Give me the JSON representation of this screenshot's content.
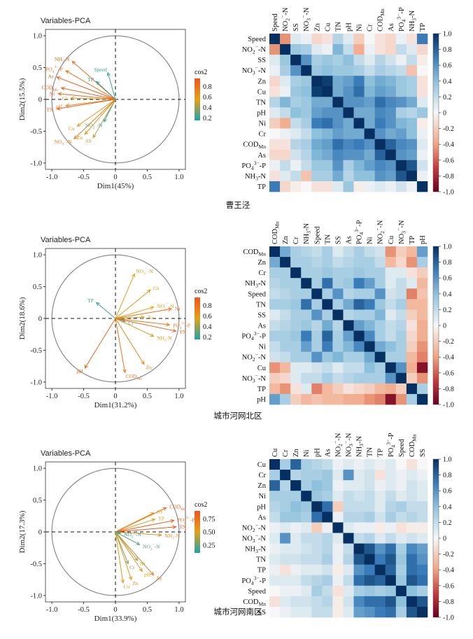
{
  "chart_data": [
    {
      "type": "scatter",
      "title": "Variables-PCA",
      "caption": "曹王泾",
      "xlabel": "Dim1(45%)",
      "ylabel": "Dim2(15.5%)",
      "xlim": [
        -1.1,
        1.1
      ],
      "ylim": [
        -1.1,
        1.1
      ],
      "ticks": [
        "-1.0",
        "-0.5",
        "0",
        "0.5",
        "1.0"
      ],
      "legend": {
        "title": "cos2",
        "ticks": [
          "0.8",
          "0.6",
          "0.4",
          "0.2"
        ],
        "range": [
          0.15,
          0.95
        ]
      },
      "vectors": [
        {
          "name": "NH3-N",
          "x": -0.68,
          "y": 0.6,
          "cos2": 0.82
        },
        {
          "name": "Speed",
          "x": -0.12,
          "y": 0.42,
          "cos2": 0.2
        },
        {
          "name": "PO4-P",
          "x": -0.78,
          "y": 0.45,
          "cos2": 0.8
        },
        {
          "name": "As",
          "x": -0.92,
          "y": 0.35,
          "cos2": 0.9
        },
        {
          "name": "TP",
          "x": -0.3,
          "y": 0.28,
          "cos2": 0.18
        },
        {
          "name": "CODMn",
          "x": -0.85,
          "y": 0.18,
          "cos2": 0.88
        },
        {
          "name": "Ni",
          "x": -0.9,
          "y": 0.09,
          "cos2": 0.85
        },
        {
          "name": "Cr",
          "x": -0.7,
          "y": 0.02,
          "cos2": 0.5
        },
        {
          "name": "pH",
          "x": -0.78,
          "y": -0.1,
          "cos2": 0.7
        },
        {
          "name": "TN",
          "x": -0.92,
          "y": -0.15,
          "cos2": 0.88
        },
        {
          "name": "NO2-N",
          "x": -0.18,
          "y": -0.35,
          "cos2": 0.2
        },
        {
          "name": "Cu",
          "x": -0.6,
          "y": -0.42,
          "cos2": 0.6
        },
        {
          "name": "Zn",
          "x": -0.48,
          "y": -0.55,
          "cos2": 0.62
        },
        {
          "name": "NO3-N",
          "x": -0.65,
          "y": -0.62,
          "cos2": 0.75
        },
        {
          "name": "SS",
          "x": -0.35,
          "y": -0.6,
          "cos2": 0.45
        }
      ]
    },
    {
      "type": "heatmap",
      "caption": "曹王泾",
      "variables": [
        "Speed",
        "NO2-N",
        "SS",
        "NO3-N",
        "Zn",
        "Cu",
        "TN",
        "pH",
        "Ni",
        "Cr",
        "CODMn",
        "As",
        "PO4-P",
        "NH3-N",
        "TP"
      ],
      "colorbar": {
        "min": -1.0,
        "max": 1.0,
        "ticks": [
          "1.0",
          "0.8",
          "0.6",
          "0.4",
          "0.2",
          "0",
          "-0.2",
          "-0.4",
          "-0.6",
          "-0.8",
          "-1.0"
        ]
      },
      "matrix": [
        [
          1.0,
          -0.45,
          0.1,
          0.05,
          -0.15,
          -0.1,
          0.25,
          0.1,
          -0.2,
          0.0,
          -0.1,
          -0.15,
          0.05,
          -0.1,
          0.7
        ],
        [
          -0.45,
          1.0,
          0.35,
          0.3,
          0.1,
          0.05,
          0.45,
          0.2,
          -0.35,
          0.05,
          -0.1,
          -0.15,
          0.2,
          0.1,
          -0.15
        ],
        [
          0.1,
          0.35,
          1.0,
          0.6,
          0.3,
          0.35,
          0.3,
          0.4,
          0.2,
          0.1,
          0.25,
          0.15,
          0.05,
          0.2,
          -0.05
        ],
        [
          0.05,
          0.3,
          0.6,
          1.0,
          0.35,
          0.4,
          0.35,
          0.35,
          0.3,
          0.2,
          0.3,
          0.25,
          0.2,
          -0.25,
          0.0
        ],
        [
          -0.15,
          0.1,
          0.3,
          0.35,
          1.0,
          0.95,
          0.5,
          0.55,
          0.7,
          0.4,
          0.5,
          0.45,
          0.35,
          0.3,
          -0.1
        ],
        [
          -0.1,
          0.05,
          0.35,
          0.4,
          0.95,
          1.0,
          0.5,
          0.6,
          0.75,
          0.45,
          0.55,
          0.5,
          0.35,
          0.3,
          -0.1
        ],
        [
          0.25,
          0.45,
          0.3,
          0.35,
          0.5,
          0.5,
          1.0,
          0.6,
          0.6,
          0.55,
          0.75,
          0.65,
          0.6,
          0.5,
          0.1
        ],
        [
          0.1,
          0.2,
          0.4,
          0.35,
          0.55,
          0.6,
          0.6,
          1.0,
          0.5,
          0.5,
          0.65,
          0.6,
          0.3,
          0.25,
          0.35
        ],
        [
          -0.2,
          -0.35,
          0.2,
          0.3,
          0.7,
          0.75,
          0.6,
          0.5,
          1.0,
          0.5,
          0.7,
          0.6,
          0.45,
          0.4,
          -0.05
        ],
        [
          0.0,
          0.05,
          0.1,
          0.2,
          0.4,
          0.45,
          0.55,
          0.5,
          0.5,
          1.0,
          0.6,
          0.5,
          0.55,
          0.4,
          0.05
        ],
        [
          -0.1,
          -0.1,
          0.25,
          0.3,
          0.5,
          0.55,
          0.75,
          0.65,
          0.7,
          0.6,
          1.0,
          0.8,
          0.65,
          0.6,
          0.1
        ],
        [
          -0.15,
          -0.15,
          0.15,
          0.25,
          0.45,
          0.5,
          0.65,
          0.6,
          0.6,
          0.5,
          0.8,
          1.0,
          0.6,
          0.55,
          0.05
        ],
        [
          0.05,
          0.2,
          0.05,
          0.2,
          0.35,
          0.35,
          0.6,
          0.3,
          0.45,
          0.55,
          0.65,
          0.6,
          1.0,
          0.85,
          0.15
        ],
        [
          -0.1,
          0.1,
          0.2,
          -0.25,
          0.3,
          0.3,
          0.5,
          0.25,
          0.4,
          0.4,
          0.6,
          0.55,
          0.85,
          1.0,
          0.05
        ],
        [
          0.7,
          -0.15,
          -0.05,
          0.0,
          -0.1,
          -0.1,
          0.1,
          0.35,
          -0.05,
          0.05,
          0.1,
          0.05,
          0.15,
          0.05,
          1.0
        ]
      ]
    },
    {
      "type": "scatter",
      "title": "Variables-PCA",
      "caption": "城市河网北区",
      "xlabel": "Dim1(31.2%)",
      "ylabel": "Dim2(18.6%)",
      "xlim": [
        -1.1,
        1.1
      ],
      "ylim": [
        -1.1,
        1.1
      ],
      "ticks": [
        "-1.0",
        "-0.5",
        "0",
        "0.5",
        "1.0"
      ],
      "legend": {
        "title": "cos2",
        "ticks": [
          "0.8",
          "0.6",
          "0.4",
          "0.2"
        ],
        "range": [
          0.15,
          0.95
        ]
      },
      "vectors": [
        {
          "name": "NO3-N",
          "x": 0.3,
          "y": 0.7,
          "cos2": 0.55
        },
        {
          "name": "Cu",
          "x": 0.55,
          "y": 0.45,
          "cos2": 0.6
        },
        {
          "name": "TP",
          "x": -0.3,
          "y": 0.25,
          "cos2": 0.2
        },
        {
          "name": "NO2-N",
          "x": 0.6,
          "y": 0.18,
          "cos2": 0.55
        },
        {
          "name": "Ni",
          "x": 0.88,
          "y": 0.15,
          "cos2": 0.8
        },
        {
          "name": "As",
          "x": 0.45,
          "y": 0.02,
          "cos2": 0.5
        },
        {
          "name": "PO4-P",
          "x": 0.85,
          "y": -0.1,
          "cos2": 0.75
        },
        {
          "name": "TN",
          "x": 0.95,
          "y": -0.2,
          "cos2": 0.88
        },
        {
          "name": "Cr",
          "x": 0.15,
          "y": -0.05,
          "cos2": 0.25
        },
        {
          "name": "NH3-N",
          "x": 0.6,
          "y": -0.28,
          "cos2": 0.6
        },
        {
          "name": "Zn",
          "x": 0.45,
          "y": -0.72,
          "cos2": 0.7
        },
        {
          "name": "pH",
          "x": -0.48,
          "y": -0.78,
          "cos2": 0.85
        },
        {
          "name": "CODMn",
          "x": 0.15,
          "y": -0.85,
          "cos2": 0.78
        }
      ]
    },
    {
      "type": "heatmap",
      "caption": "城市河网北区",
      "variables": [
        "CODMn",
        "Zn",
        "Cr",
        "NH3-N",
        "Speed",
        "TN",
        "SS",
        "As",
        "PO4-P",
        "Ni",
        "NO2-N",
        "Cu",
        "NO3-N",
        "TP",
        "pH"
      ],
      "colorbar": {
        "min": -1.0,
        "max": 1.0,
        "ticks": [
          "1.0",
          "0.8",
          "0.6",
          "0.4",
          "0.2",
          "0",
          "-0.2",
          "-0.4",
          "-0.6",
          "-0.8",
          "-1.0"
        ]
      },
      "matrix": [
        [
          1.0,
          0.5,
          0.3,
          0.25,
          0.2,
          0.3,
          0.1,
          0.2,
          0.3,
          0.2,
          0.15,
          -0.45,
          -0.2,
          -0.3,
          0.55
        ],
        [
          0.5,
          1.0,
          0.3,
          0.3,
          0.25,
          0.3,
          0.2,
          0.25,
          0.3,
          0.3,
          0.2,
          -0.3,
          -0.15,
          -0.45,
          0.3
        ],
        [
          0.3,
          0.3,
          1.0,
          0.3,
          0.3,
          0.35,
          0.3,
          0.3,
          0.35,
          0.3,
          0.3,
          0.1,
          0.1,
          -0.1,
          -0.2
        ],
        [
          0.25,
          0.3,
          0.3,
          1.0,
          0.3,
          0.75,
          0.3,
          0.35,
          0.7,
          0.55,
          0.3,
          0.1,
          0.2,
          0.1,
          -0.3
        ],
        [
          0.2,
          0.25,
          0.3,
          0.3,
          1.0,
          0.3,
          0.6,
          0.25,
          0.3,
          0.3,
          0.6,
          0.15,
          0.2,
          -0.5,
          -0.25
        ],
        [
          0.3,
          0.3,
          0.35,
          0.75,
          0.3,
          1.0,
          0.3,
          0.5,
          0.8,
          0.7,
          0.35,
          0.2,
          0.3,
          -0.3,
          -0.3
        ],
        [
          0.1,
          0.2,
          0.3,
          0.3,
          0.6,
          0.3,
          1.0,
          0.25,
          0.3,
          0.3,
          0.45,
          0.1,
          0.2,
          -0.2,
          -0.3
        ],
        [
          0.2,
          0.25,
          0.3,
          0.35,
          0.25,
          0.5,
          0.25,
          1.0,
          0.55,
          0.45,
          0.3,
          0.2,
          0.25,
          -0.1,
          -0.35
        ],
        [
          0.3,
          0.3,
          0.35,
          0.7,
          0.3,
          0.8,
          0.3,
          0.55,
          1.0,
          0.65,
          0.3,
          0.2,
          0.3,
          -0.15,
          -0.35
        ],
        [
          0.2,
          0.3,
          0.3,
          0.55,
          0.3,
          0.7,
          0.3,
          0.45,
          0.65,
          1.0,
          0.5,
          0.4,
          0.3,
          -0.2,
          -0.45
        ],
        [
          0.15,
          0.2,
          0.3,
          0.3,
          0.6,
          0.35,
          0.45,
          0.3,
          0.3,
          0.5,
          1.0,
          0.3,
          0.3,
          -0.3,
          -0.5
        ],
        [
          -0.45,
          -0.3,
          0.1,
          0.1,
          0.15,
          0.2,
          0.1,
          0.2,
          0.2,
          0.4,
          0.3,
          1.0,
          0.6,
          -0.35,
          -0.9
        ],
        [
          -0.2,
          -0.15,
          0.1,
          0.2,
          0.2,
          0.3,
          0.2,
          0.25,
          0.3,
          0.3,
          0.3,
          0.6,
          1.0,
          -0.2,
          -0.45
        ],
        [
          -0.3,
          -0.45,
          -0.1,
          0.1,
          -0.5,
          -0.3,
          -0.2,
          -0.1,
          -0.15,
          -0.2,
          -0.3,
          -0.35,
          -0.2,
          1.0,
          0.3
        ],
        [
          0.55,
          0.3,
          -0.2,
          -0.3,
          -0.25,
          -0.3,
          -0.3,
          -0.35,
          -0.35,
          -0.45,
          -0.5,
          -0.9,
          -0.45,
          0.3,
          1.0
        ]
      ]
    },
    {
      "type": "scatter",
      "title": "Variables-PCA",
      "caption": "城市河网南区",
      "xlabel": "Dim1(33.9%)",
      "ylabel": "Dim2(17.3%)",
      "xlim": [
        -1.1,
        1.1
      ],
      "ylim": [
        -1.1,
        1.1
      ],
      "ticks": [
        "-1.0",
        "-0.5",
        "0",
        "0.5",
        "1.0"
      ],
      "legend": {
        "title": "cos2",
        "ticks": [
          "0.75",
          "0.50",
          "0.25"
        ],
        "range": [
          0.1,
          0.9
        ]
      },
      "vectors": [
        {
          "name": "SS",
          "x": 0.6,
          "y": 0.3,
          "cos2": 0.5
        },
        {
          "name": "CODMn",
          "x": 0.8,
          "y": 0.38,
          "cos2": 0.8
        },
        {
          "name": "TP",
          "x": 0.62,
          "y": 0.2,
          "cos2": 0.55
        },
        {
          "name": "PO4-P",
          "x": 0.92,
          "y": 0.18,
          "cos2": 0.85
        },
        {
          "name": "TN",
          "x": 0.95,
          "y": 0.08,
          "cos2": 0.88
        },
        {
          "name": "NH3-N",
          "x": 0.72,
          "y": -0.05,
          "cos2": 0.6
        },
        {
          "name": "NO2-N",
          "x": 0.08,
          "y": -0.02,
          "cos2": 0.1
        },
        {
          "name": "NO3-N",
          "x": 0.38,
          "y": -0.2,
          "cos2": 0.2
        },
        {
          "name": "Cu",
          "x": 0.12,
          "y": -0.8,
          "cos2": 0.55
        },
        {
          "name": "Zn",
          "x": 0.25,
          "y": -0.75,
          "cos2": 0.55
        },
        {
          "name": "pH",
          "x": 0.42,
          "y": -0.62,
          "cos2": 0.55
        },
        {
          "name": "As",
          "x": 0.6,
          "y": -0.68,
          "cos2": 0.7
        },
        {
          "name": "Cr",
          "x": 0.2,
          "y": -0.5,
          "cos2": 0.3
        },
        {
          "name": "Ni",
          "x": 0.35,
          "y": -0.45,
          "cos2": 0.35
        }
      ]
    },
    {
      "type": "heatmap",
      "caption": "城市河网南区",
      "variables": [
        "Cu",
        "Cr",
        "Zn",
        "Ni",
        "pH",
        "As",
        "NO2-N",
        "NO3-N",
        "NH3-N",
        "TN",
        "TP",
        "PO4-P",
        "Speed",
        "CODMn",
        "SS"
      ],
      "colorbar": {
        "min": -1.0,
        "max": 1.0,
        "ticks": [
          "1.0",
          "0.8",
          "0.6",
          "0.4",
          "0.2",
          "0",
          "-0.2",
          "-0.4",
          "-0.6",
          "-0.8",
          "-1.0"
        ]
      },
      "matrix": [
        [
          1.0,
          0.3,
          0.8,
          0.3,
          0.25,
          0.2,
          0.05,
          0.1,
          0.05,
          0.1,
          0.05,
          0.1,
          0.0,
          -0.1,
          0.0
        ],
        [
          0.3,
          1.0,
          0.25,
          0.3,
          0.3,
          0.35,
          0.1,
          0.6,
          0.1,
          0.15,
          -0.1,
          0.1,
          0.05,
          0.1,
          0.05
        ],
        [
          0.8,
          0.25,
          1.0,
          0.3,
          0.4,
          0.35,
          0.05,
          0.1,
          0.1,
          0.15,
          0.05,
          0.1,
          0.05,
          0.15,
          0.1
        ],
        [
          0.3,
          0.3,
          0.3,
          1.0,
          0.35,
          0.3,
          0.1,
          0.2,
          0.15,
          0.2,
          0.1,
          0.2,
          0.1,
          0.15,
          0.1
        ],
        [
          0.25,
          0.3,
          0.4,
          0.35,
          1.0,
          0.75,
          -0.2,
          0.2,
          0.2,
          0.2,
          0.1,
          0.25,
          0.3,
          0.2,
          0.2
        ],
        [
          0.2,
          0.35,
          0.35,
          0.3,
          0.75,
          1.0,
          0.05,
          0.25,
          0.25,
          0.3,
          0.15,
          0.3,
          0.2,
          0.25,
          0.2
        ],
        [
          0.05,
          0.1,
          0.05,
          0.1,
          -0.2,
          0.05,
          1.0,
          0.1,
          0.05,
          0.05,
          -0.05,
          0.05,
          -0.1,
          -0.05,
          -0.05
        ],
        [
          0.1,
          0.6,
          0.1,
          0.2,
          0.2,
          0.25,
          0.1,
          1.0,
          0.2,
          0.25,
          0.1,
          0.2,
          0.1,
          0.15,
          0.1
        ],
        [
          0.05,
          0.1,
          0.1,
          0.15,
          0.2,
          0.25,
          0.05,
          0.2,
          1.0,
          0.85,
          0.6,
          0.75,
          0.3,
          0.65,
          0.55
        ],
        [
          0.1,
          0.15,
          0.15,
          0.2,
          0.2,
          0.3,
          0.05,
          0.25,
          0.85,
          1.0,
          0.7,
          0.85,
          0.35,
          0.75,
          0.6
        ],
        [
          0.05,
          -0.1,
          0.05,
          0.1,
          0.1,
          0.15,
          -0.05,
          0.1,
          0.6,
          0.7,
          1.0,
          0.8,
          0.3,
          0.75,
          0.7
        ],
        [
          0.1,
          0.1,
          0.1,
          0.2,
          0.25,
          0.3,
          0.05,
          0.2,
          0.75,
          0.85,
          0.8,
          1.0,
          0.35,
          0.85,
          0.75
        ],
        [
          0.0,
          0.05,
          0.05,
          0.1,
          0.3,
          0.2,
          -0.1,
          0.1,
          0.3,
          0.35,
          0.3,
          0.35,
          1.0,
          0.4,
          0.3
        ],
        [
          -0.1,
          0.1,
          0.15,
          0.15,
          0.2,
          0.25,
          -0.05,
          0.15,
          0.65,
          0.75,
          0.75,
          0.85,
          0.4,
          1.0,
          0.85
        ],
        [
          0.0,
          0.05,
          0.1,
          0.1,
          0.2,
          0.2,
          -0.05,
          0.1,
          0.55,
          0.6,
          0.7,
          0.75,
          0.3,
          0.85,
          1.0
        ]
      ]
    }
  ]
}
